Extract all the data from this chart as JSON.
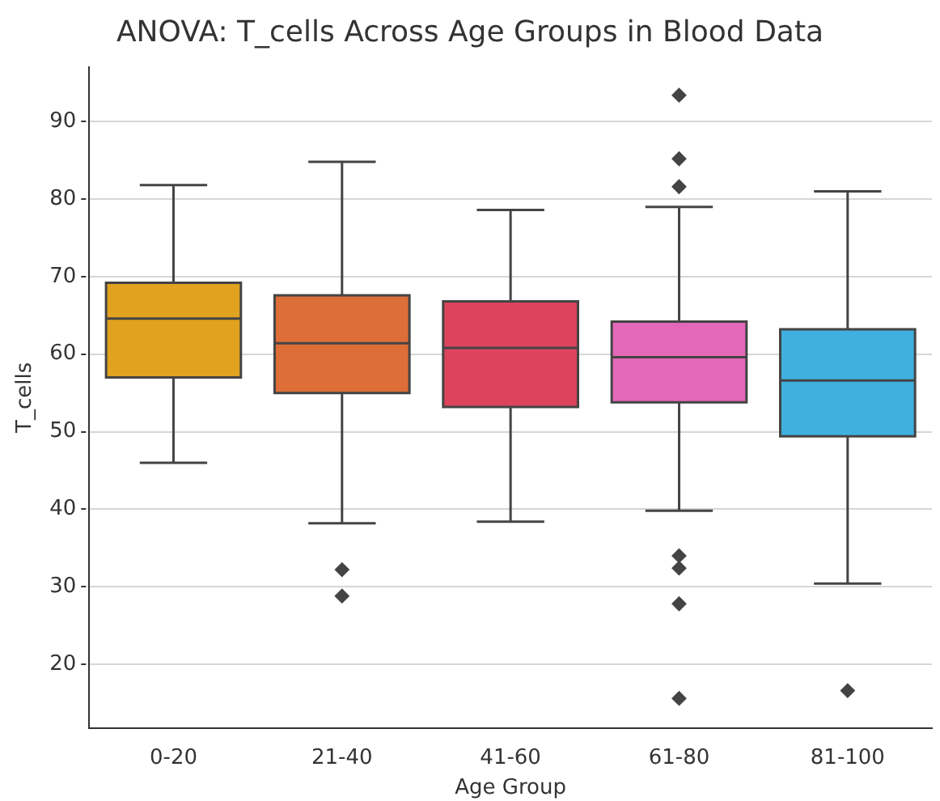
{
  "chart_data": {
    "type": "box",
    "title": "ANOVA: T_cells Across Age Groups in Blood Data",
    "xlabel": "Age Group",
    "ylabel": "T_cells",
    "categories": [
      "0-20",
      "21-40",
      "41-60",
      "61-80",
      "81-100"
    ],
    "colors": [
      "#e1a21f",
      "#dd6e37",
      "#dc445e",
      "#e468b8",
      "#3fb0e0"
    ],
    "boxes": [
      {
        "low": 46,
        "q1": 57,
        "median": 64.6,
        "q3": 69.2,
        "high": 81.8
      },
      {
        "low": 38.2,
        "q1": 55,
        "median": 61.4,
        "q3": 67.6,
        "high": 84.8,
        "outliers": [
          32.2,
          28.8
        ]
      },
      {
        "low": 38.4,
        "q1": 53.2,
        "median": 60.8,
        "q3": 66.8,
        "high": 78.6
      },
      {
        "low": 39.8,
        "q1": 53.8,
        "median": 59.6,
        "q3": 64.2,
        "high": 79,
        "outliers": [
          93.4,
          85.2,
          81.6,
          34,
          32.4,
          27.8,
          15.6
        ]
      },
      {
        "low": 30.4,
        "q1": 49.4,
        "median": 56.6,
        "q3": 63.2,
        "high": 81,
        "outliers": [
          16.6
        ]
      }
    ],
    "ylim": [
      11.8,
      97
    ],
    "yticks": [
      20,
      30,
      40,
      50,
      60,
      70,
      80,
      90
    ],
    "grid": "y",
    "legend": false
  }
}
